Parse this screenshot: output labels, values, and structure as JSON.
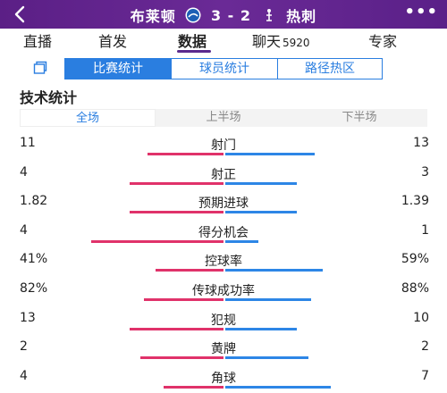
{
  "header": {
    "home_team": "布莱顿",
    "away_team": "热刺",
    "score": "3 - 2"
  },
  "tabs": [
    {
      "label": "直播",
      "active": false
    },
    {
      "label": "首发",
      "active": false
    },
    {
      "label": "数据",
      "active": true
    },
    {
      "label": "聊天",
      "count": "5920",
      "active": false
    },
    {
      "label": "专家",
      "active": false
    }
  ],
  "subnav": [
    {
      "label": "比赛统计",
      "active": true
    },
    {
      "label": "球员统计",
      "active": false
    },
    {
      "label": "路径热区",
      "active": false
    }
  ],
  "section_title": "技术统计",
  "periods": [
    {
      "label": "全场",
      "active": true
    },
    {
      "label": "上半场",
      "active": false
    },
    {
      "label": "下半场",
      "active": false
    }
  ],
  "stats": [
    {
      "label": "射门",
      "home": "11",
      "away": "13",
      "home_share": 0.46,
      "away_share": 0.54
    },
    {
      "label": "射正",
      "home": "4",
      "away": "3",
      "home_share": 0.57,
      "away_share": 0.43
    },
    {
      "label": "预期进球",
      "home": "1.82",
      "away": "1.39",
      "home_share": 0.57,
      "away_share": 0.43
    },
    {
      "label": "得分机会",
      "home": "4",
      "away": "1",
      "home_share": 0.8,
      "away_share": 0.2
    },
    {
      "label": "控球率",
      "home": "41%",
      "away": "59%",
      "home_share": 0.41,
      "away_share": 0.59
    },
    {
      "label": "传球成功率",
      "home": "82%",
      "away": "88%",
      "home_share": 0.48,
      "away_share": 0.52
    },
    {
      "label": "犯规",
      "home": "13",
      "away": "10",
      "home_share": 0.57,
      "away_share": 0.43
    },
    {
      "label": "黄牌",
      "home": "2",
      "away": "2",
      "home_share": 0.5,
      "away_share": 0.5
    },
    {
      "label": "角球",
      "home": "4",
      "away": "7",
      "home_share": 0.36,
      "away_share": 0.64
    }
  ],
  "colors": {
    "home_bar": "#e0326a",
    "away_bar": "#2d86e6",
    "header_bg": "#5b1f86",
    "accent": "#2a7ee0"
  },
  "icons": {
    "back": "chevron-left-icon",
    "more": "more-dots-icon",
    "copy": "copy-icon"
  }
}
